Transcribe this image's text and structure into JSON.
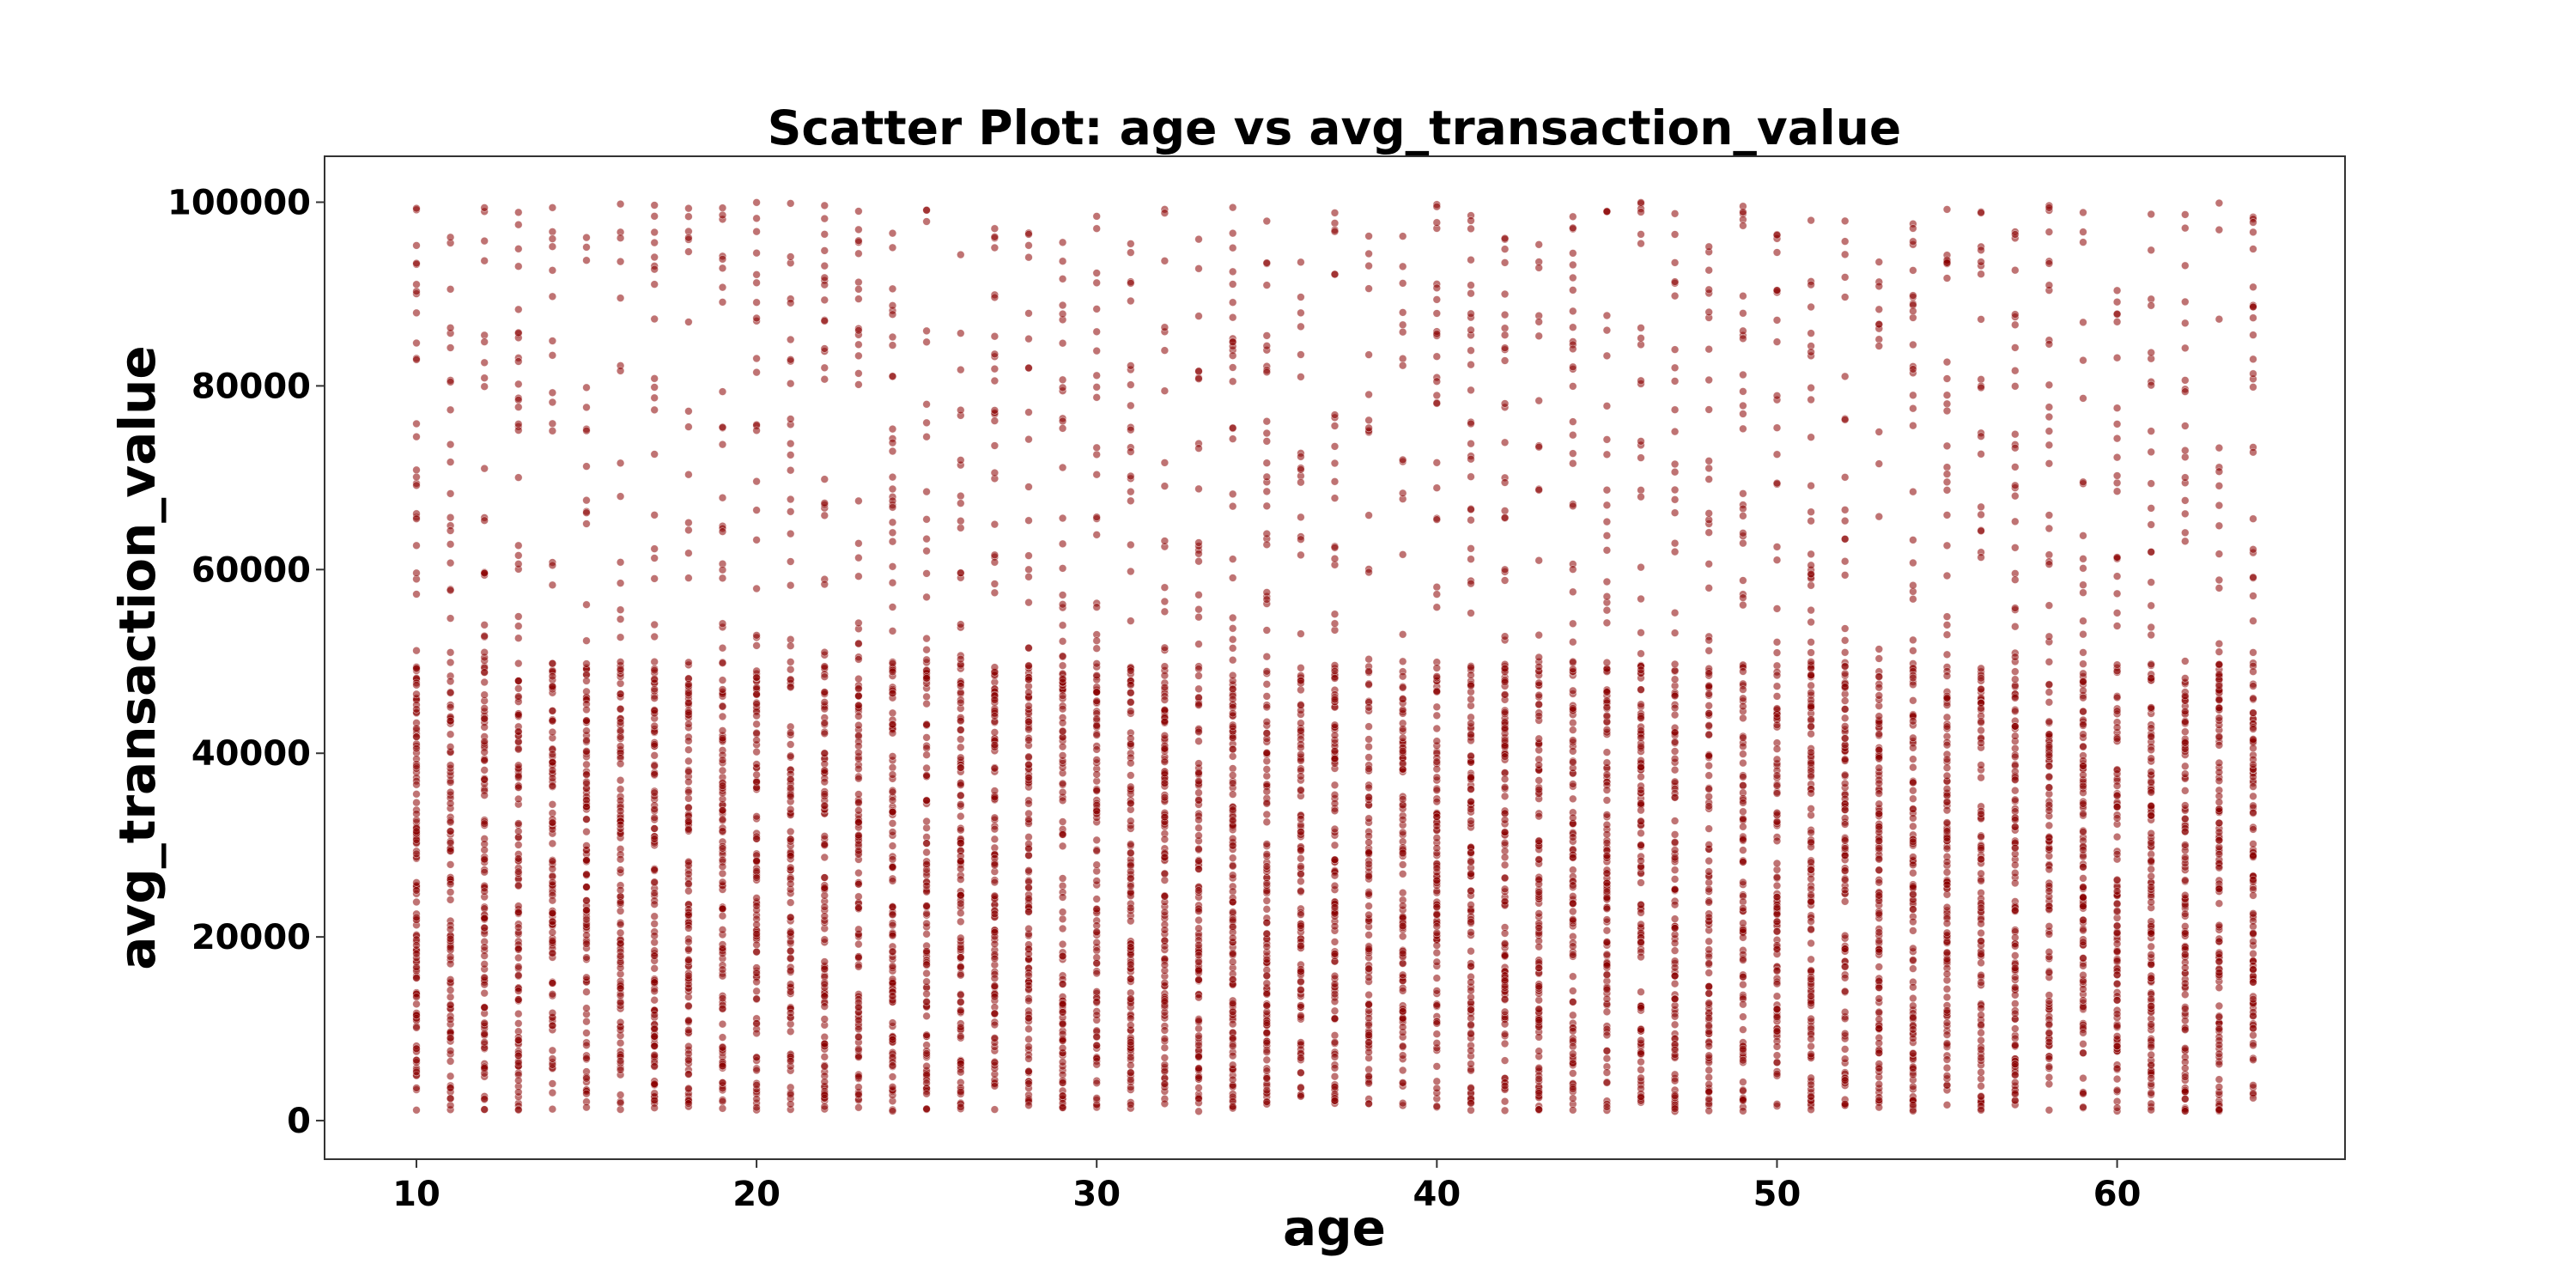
{
  "chart_data": {
    "type": "scatter",
    "title": "Scatter Plot: age vs avg_transaction_value",
    "xlabel": "age",
    "ylabel": "avg_transaction_value",
    "xlim": [
      7.3,
      66.7
    ],
    "ylim": [
      -4200,
      105000
    ],
    "xticks": [
      10,
      20,
      30,
      40,
      50,
      60
    ],
    "yticks": [
      0,
      20000,
      40000,
      60000,
      80000,
      100000
    ],
    "grid": false,
    "legend": "none",
    "marker_color": "#8b0000",
    "age_values": [
      10,
      11,
      12,
      13,
      14,
      15,
      16,
      17,
      18,
      19,
      20,
      21,
      22,
      23,
      24,
      25,
      26,
      27,
      28,
      29,
      30,
      31,
      32,
      33,
      34,
      35,
      36,
      37,
      38,
      39,
      40,
      41,
      42,
      43,
      44,
      45,
      46,
      47,
      48,
      49,
      50,
      51,
      52,
      53,
      54,
      55,
      56,
      57,
      58,
      59,
      60,
      61,
      62,
      63,
      64
    ],
    "distribution_notes": "Each integer age from 10 to 64 has a dense column of points between about 1000 and 50000, plus sparser points between about 50000 and 100000."
  }
}
